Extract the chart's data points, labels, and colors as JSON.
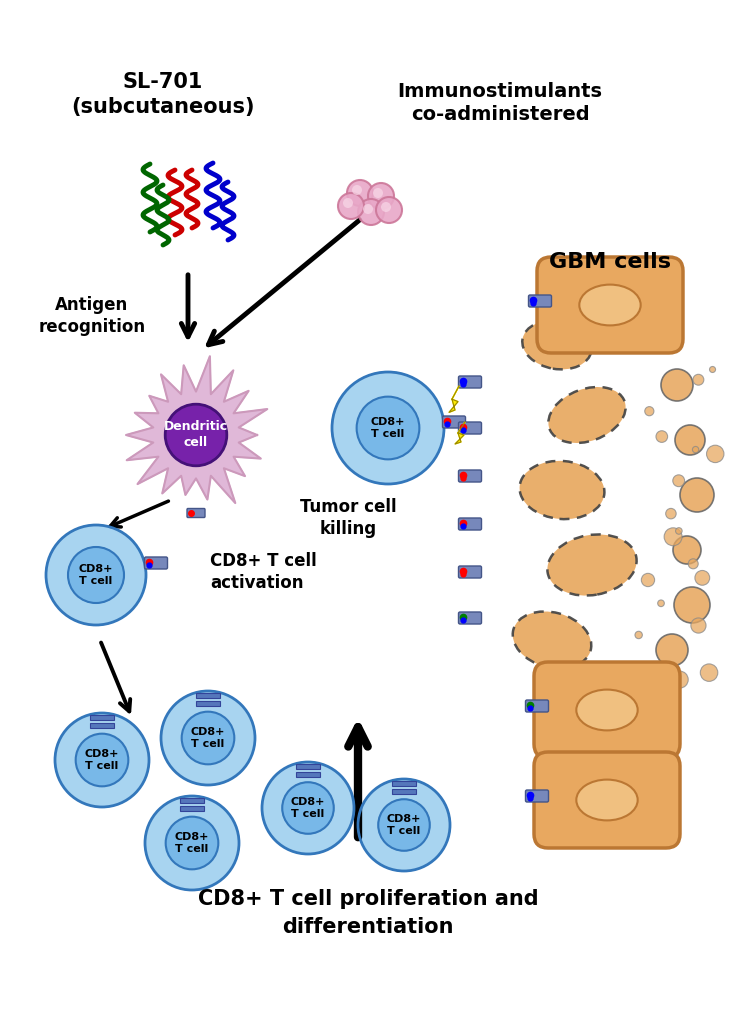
{
  "bg_color": "#ffffff",
  "text_sl701": "SL-701\n(subcutaneous)",
  "text_immunostim": "Immunostimulants\nco-administered",
  "text_antigen": "Antigen\nrecognition",
  "text_dendritic": "Dendritic\ncell",
  "text_gbm": "GBM cells",
  "text_cd8_activation": "CD8+ T cell\nactivation",
  "text_tumor_killing": "Tumor cell\nkilling",
  "text_proliferation": "CD8+ T cell proliferation and\ndifferentiation",
  "text_cd8": "CD8+\nT cell",
  "cell_body_color": "#a8d4f0",
  "cell_inner_color": "#78b8e8",
  "cell_outline_color": "#3377bb",
  "dendritic_outer_color": "#e0b8d8",
  "dendritic_inner_color": "#7722aa",
  "gbm_cell_color": "#e8a860",
  "gbm_cell_outline": "#bb7733",
  "gbm_debris_color": "#e8a860",
  "receptor_body_color": "#6677aa",
  "lightning_color": "#ffee00"
}
